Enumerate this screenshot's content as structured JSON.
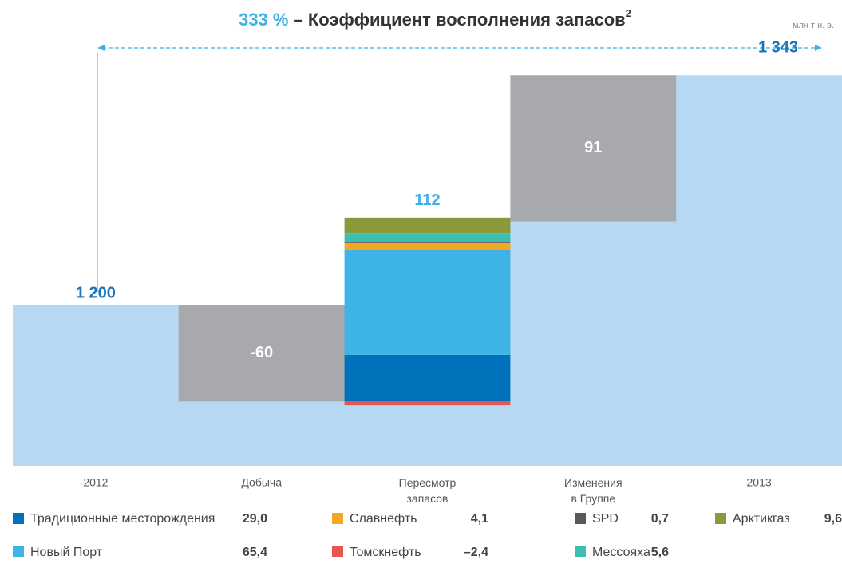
{
  "chart_data": {
    "type": "waterfall",
    "title_value": "333 %",
    "title": "– Коэффициент восполнения запасов",
    "title_note": "2",
    "unit": "млн т н. э.",
    "categories": [
      "2012",
      "Добыча",
      "Пересмотр\nзапасов",
      "Изменения\nв Группе",
      "2013"
    ],
    "values": [
      1200,
      -60,
      112,
      91,
      1343
    ],
    "value_labels": [
      "1 200",
      "-60",
      "112",
      "91",
      "1 343"
    ],
    "total_color": "#b6d8f2",
    "change_color": "#a7a9ac",
    "ylim": [
      1100,
      1360
    ],
    "segments": [
      null,
      null,
      [
        {
          "name": "Традиционные месторождения",
          "color": "#0072bc",
          "value": 29.0,
          "value_label": "29,0"
        },
        {
          "name": "Новый Порт",
          "color": "#3db3e6",
          "value": 65.4,
          "value_label": "65,4"
        },
        {
          "name": "Славнефть",
          "color": "#f5a623",
          "value": 4.1,
          "value_label": "4,1"
        },
        {
          "name": "Томскнефть",
          "color": "#e8554e",
          "value": -2.4,
          "value_label": "–2,4"
        },
        {
          "name": "SPD",
          "color": "#58595b",
          "value": 0.7,
          "value_label": "0,7"
        },
        {
          "name": "Мессояха",
          "color": "#3dbfad",
          "value": 5.6,
          "value_label": "5,6"
        },
        {
          "name": "Арктикгаз",
          "color": "#8a9a3b",
          "value": 9.6,
          "value_label": "9,6"
        }
      ],
      null,
      null
    ]
  }
}
